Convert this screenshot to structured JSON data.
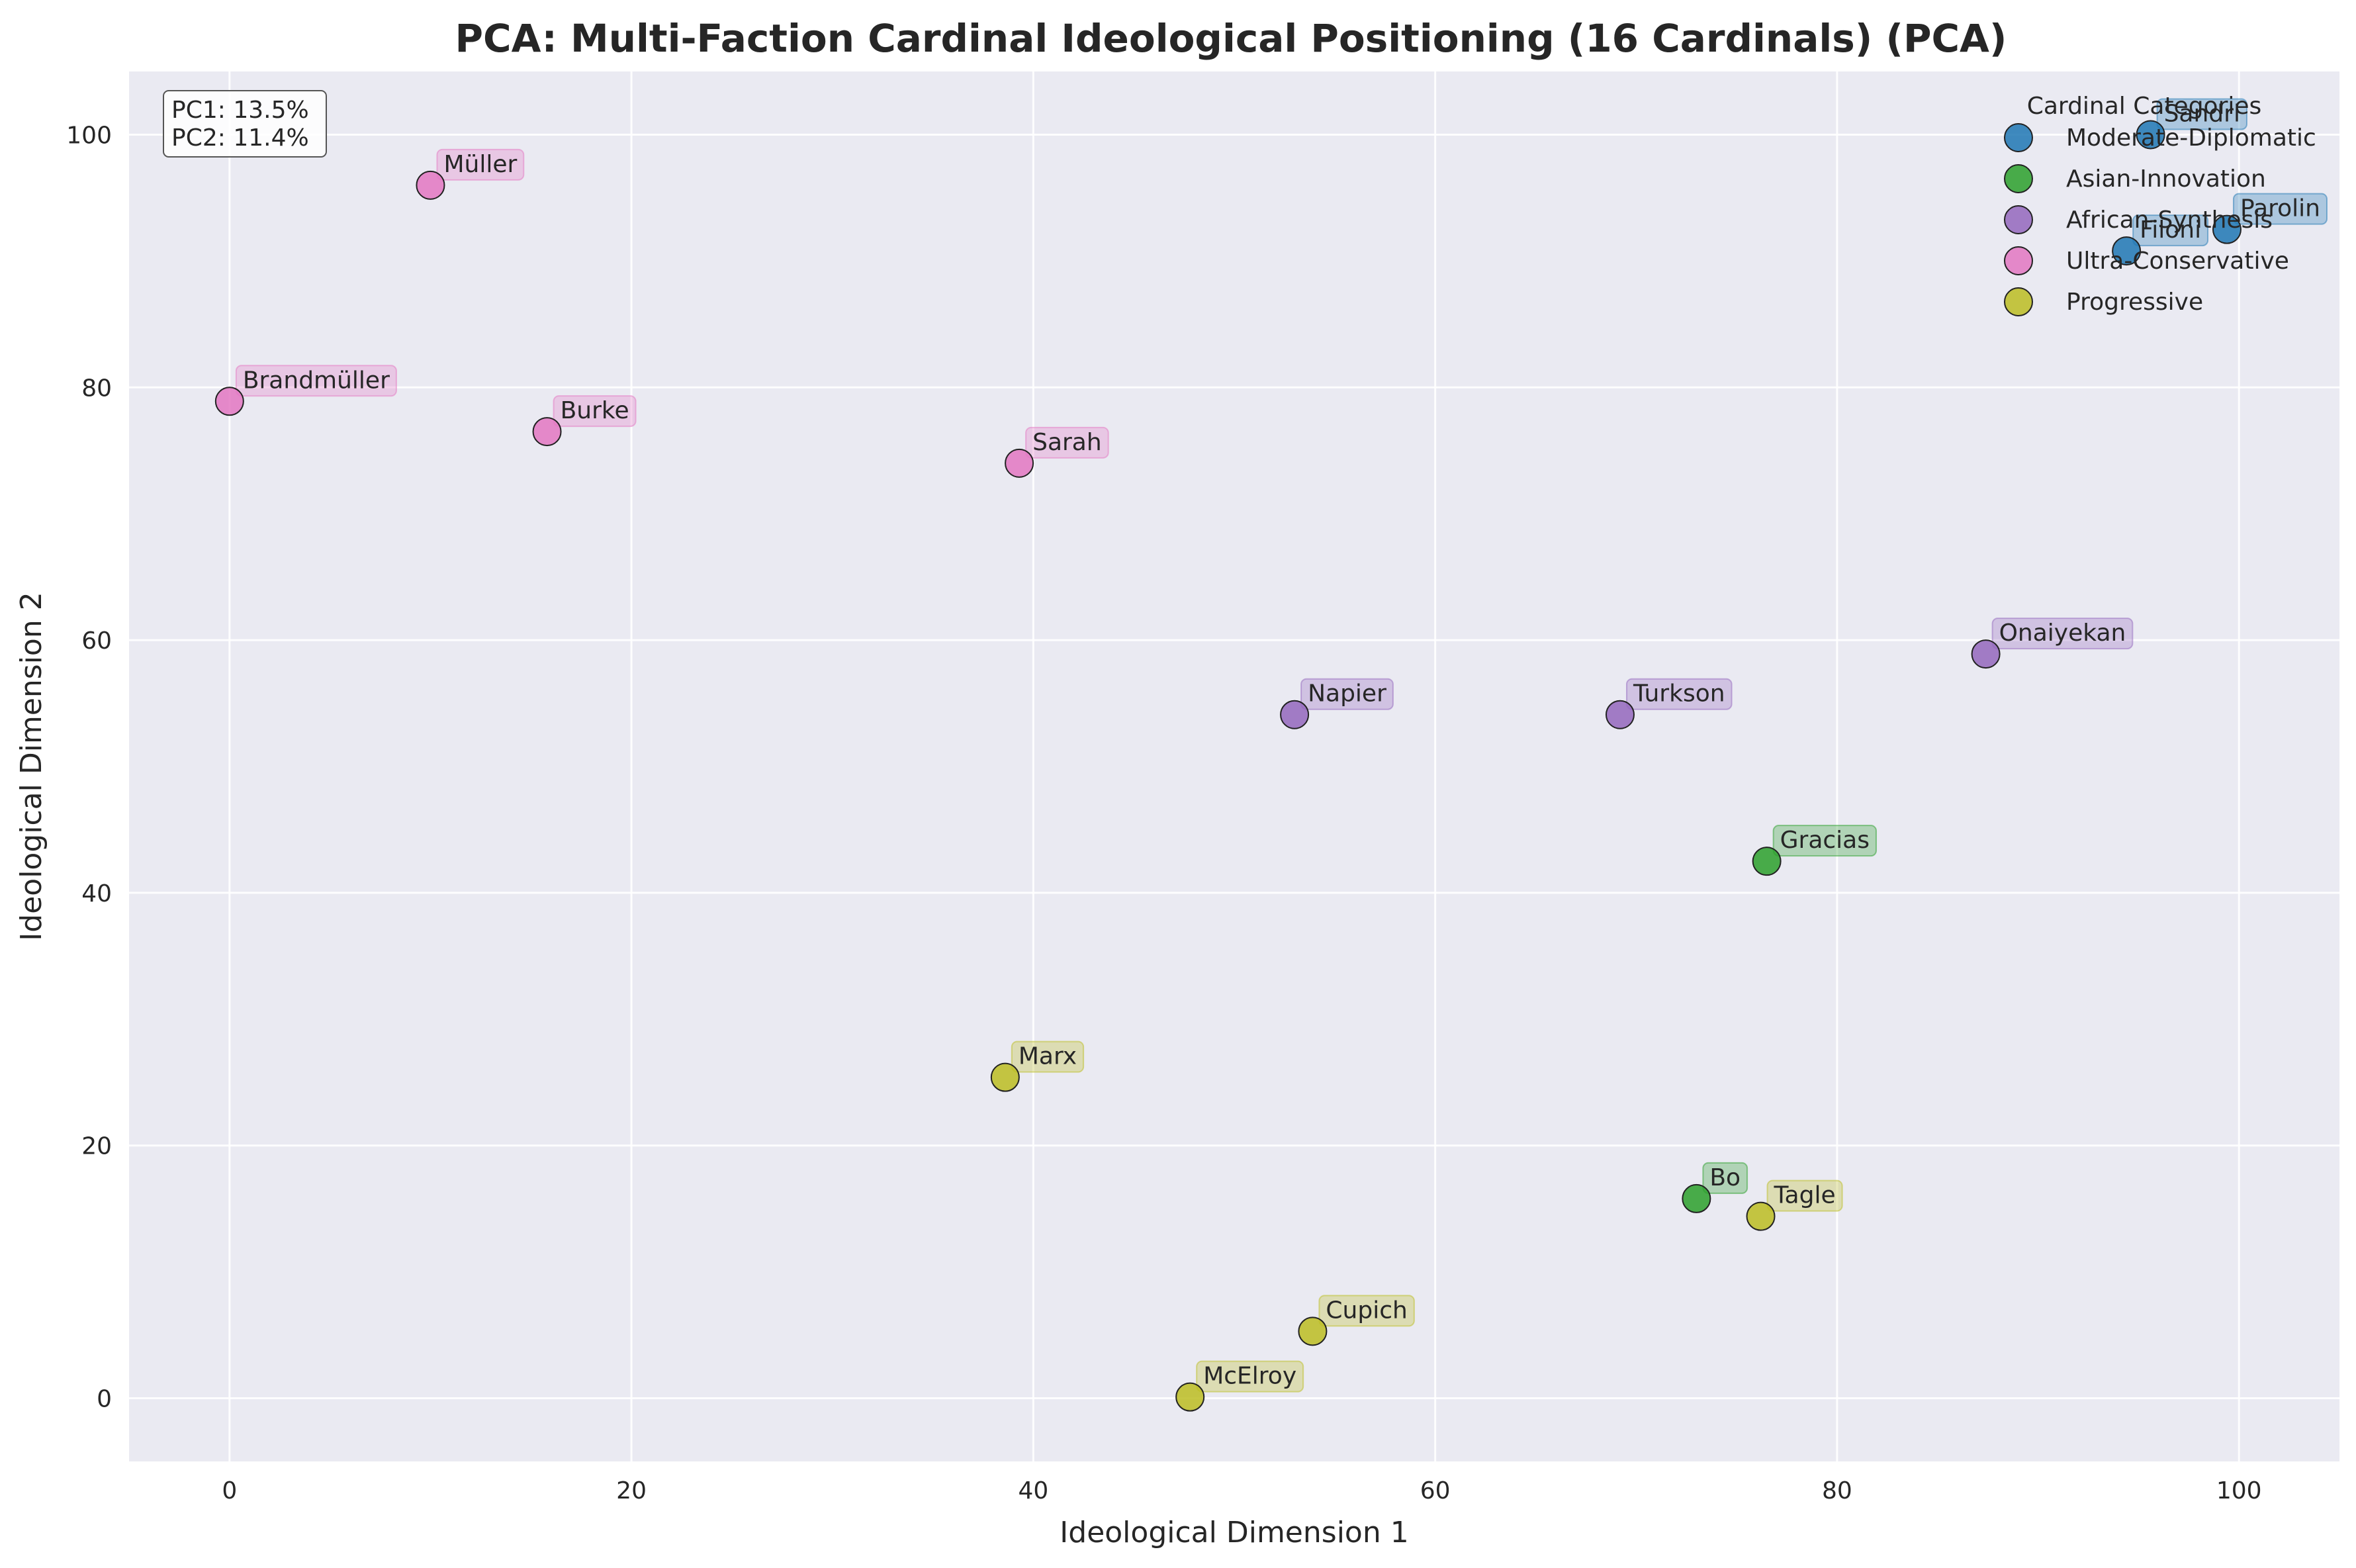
{
  "chart_data": {
    "type": "scatter",
    "title": "PCA: Multi-Faction Cardinal Ideological Positioning (16 Cardinals) (PCA)",
    "xlabel": "Ideological Dimension 1",
    "ylabel": "Ideological Dimension 2",
    "xlim": [
      -5,
      105
    ],
    "ylim": [
      -5,
      105
    ],
    "xticks": [
      0,
      20,
      40,
      60,
      80,
      100
    ],
    "yticks": [
      0,
      20,
      40,
      60,
      80,
      100
    ],
    "grid": true,
    "legend_title": "Cardinal Categories",
    "legend_position": "top-right",
    "variance": [
      "PC1: 13.5%",
      "PC2: 11.4%"
    ],
    "series": [
      {
        "name": "Moderate-Diplomatic",
        "color": "#1f77b4",
        "points": [
          {
            "label": "Sandri",
            "x": 95.6,
            "y": 100.0
          },
          {
            "label": "Parolin",
            "x": 99.4,
            "y": 92.5
          },
          {
            "label": "Filoni",
            "x": 94.4,
            "y": 90.8
          }
        ]
      },
      {
        "name": "Asian-Innovation",
        "color": "#2ca02c",
        "points": [
          {
            "label": "Gracias",
            "x": 76.5,
            "y": 42.5
          },
          {
            "label": "Bo",
            "x": 73.0,
            "y": 15.8
          }
        ]
      },
      {
        "name": "African-Synthesis",
        "color": "#9467bd",
        "points": [
          {
            "label": "Onaiyekan",
            "x": 87.4,
            "y": 58.9
          },
          {
            "label": "Napier",
            "x": 53.0,
            "y": 54.1
          },
          {
            "label": "Turkson",
            "x": 69.2,
            "y": 54.1
          }
        ]
      },
      {
        "name": "Ultra-Conservative",
        "color": "#e377c2",
        "points": [
          {
            "label": "Müller",
            "x": 10.0,
            "y": 96.0
          },
          {
            "label": "Brandmüller",
            "x": 0.0,
            "y": 78.9
          },
          {
            "label": "Burke",
            "x": 15.8,
            "y": 76.5
          },
          {
            "label": "Sarah",
            "x": 39.3,
            "y": 74.0
          }
        ]
      },
      {
        "name": "Progressive",
        "color": "#bcbd22",
        "points": [
          {
            "label": "Marx",
            "x": 38.6,
            "y": 25.4
          },
          {
            "label": "Tagle",
            "x": 76.2,
            "y": 14.4
          },
          {
            "label": "Cupich",
            "x": 53.9,
            "y": 5.3
          },
          {
            "label": "McElroy",
            "x": 47.8,
            "y": 0.1
          }
        ]
      }
    ]
  }
}
